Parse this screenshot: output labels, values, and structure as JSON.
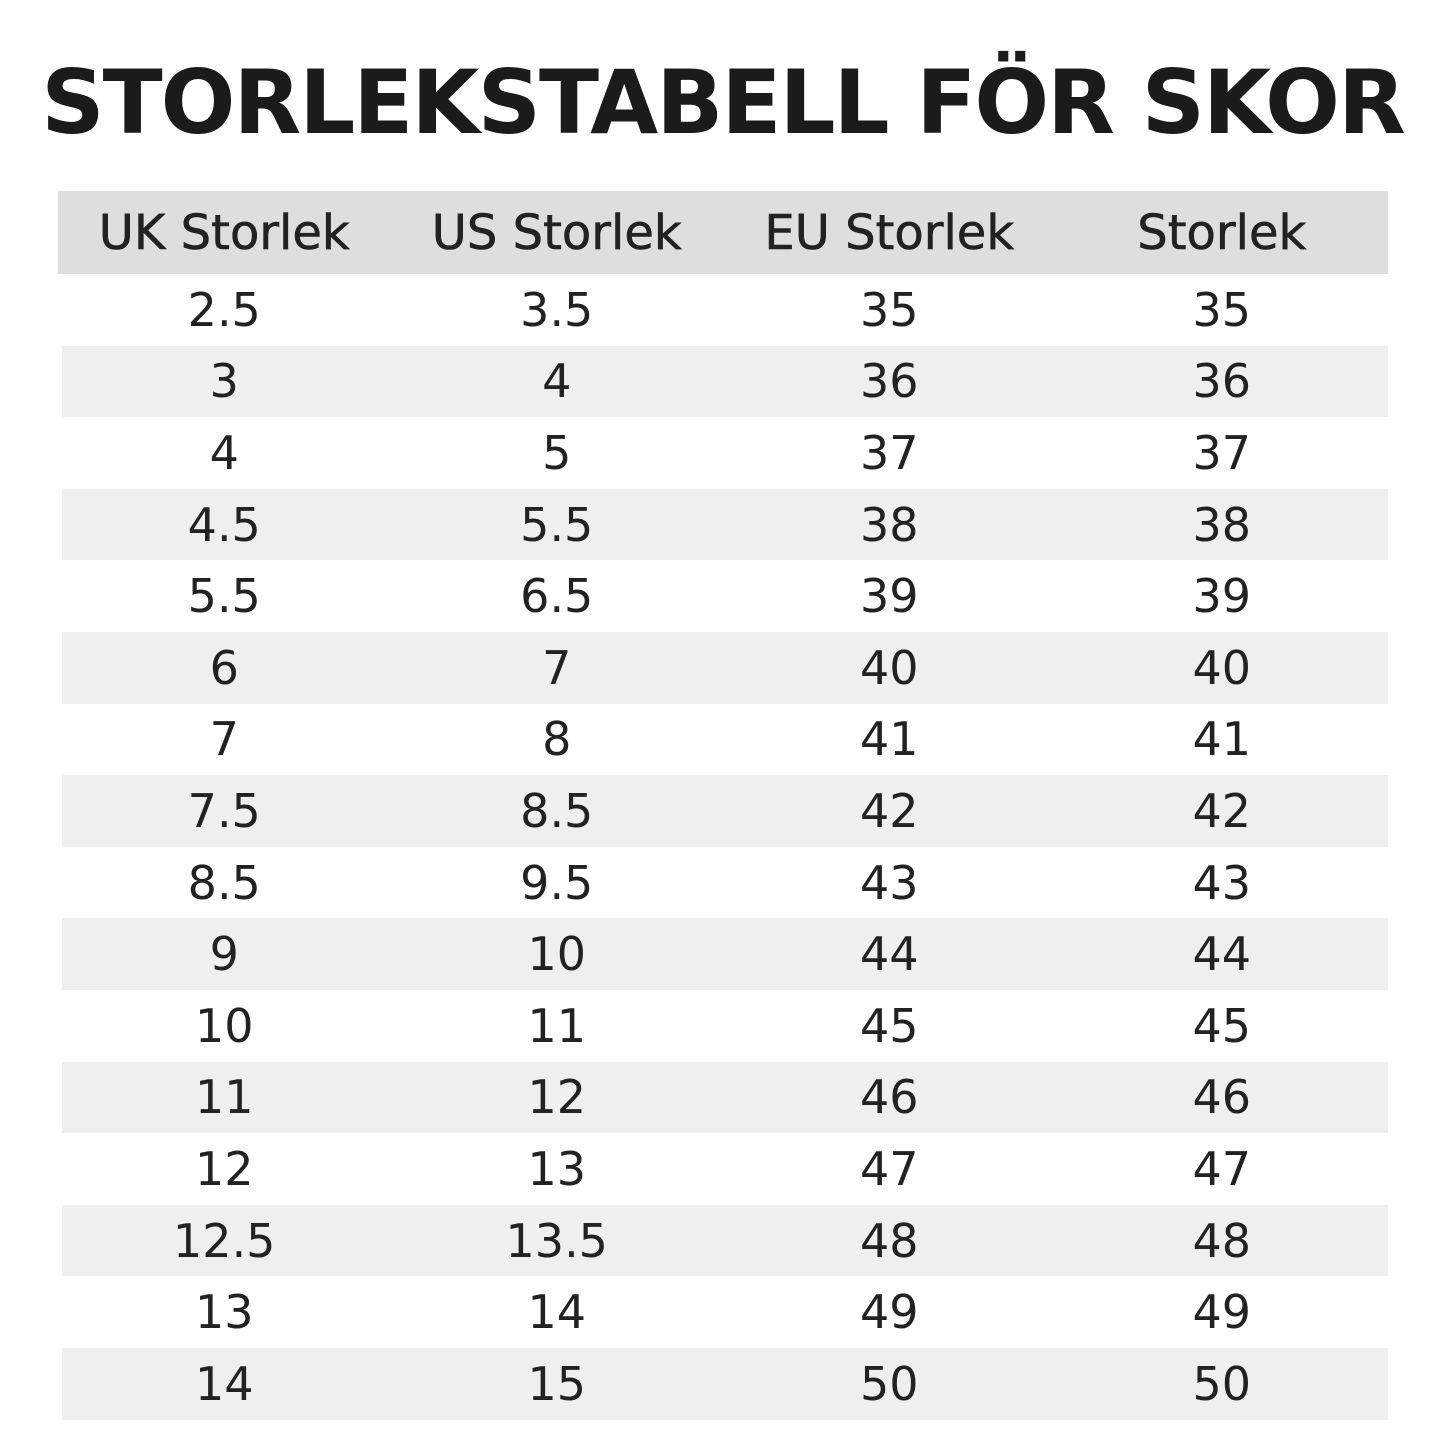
{
  "title": "STORLEKSTABELL FÖR SKOR",
  "table": {
    "headers": [
      "UK Storlek",
      "US Storlek",
      "EU Storlek",
      "Storlek"
    ],
    "rows": [
      [
        "2.5",
        "3.5",
        "35",
        "35"
      ],
      [
        "3",
        "4",
        "36",
        "36"
      ],
      [
        "4",
        "5",
        "37",
        "37"
      ],
      [
        "4.5",
        "5.5",
        "38",
        "38"
      ],
      [
        "5.5",
        "6.5",
        "39",
        "39"
      ],
      [
        "6",
        "7",
        "40",
        "40"
      ],
      [
        "7",
        "8",
        "41",
        "41"
      ],
      [
        "7.5",
        "8.5",
        "42",
        "42"
      ],
      [
        "8.5",
        "9.5",
        "43",
        "43"
      ],
      [
        "9",
        "10",
        "44",
        "44"
      ],
      [
        "10",
        "11",
        "45",
        "45"
      ],
      [
        "11",
        "12",
        "46",
        "46"
      ],
      [
        "12",
        "13",
        "47",
        "47"
      ],
      [
        "12.5",
        "13.5",
        "48",
        "48"
      ],
      [
        "13",
        "14",
        "49",
        "49"
      ],
      [
        "14",
        "15",
        "50",
        "50"
      ]
    ]
  },
  "colors": {
    "header_background": "#dedede",
    "stripe_background": "#efefef",
    "text": "#222222"
  }
}
